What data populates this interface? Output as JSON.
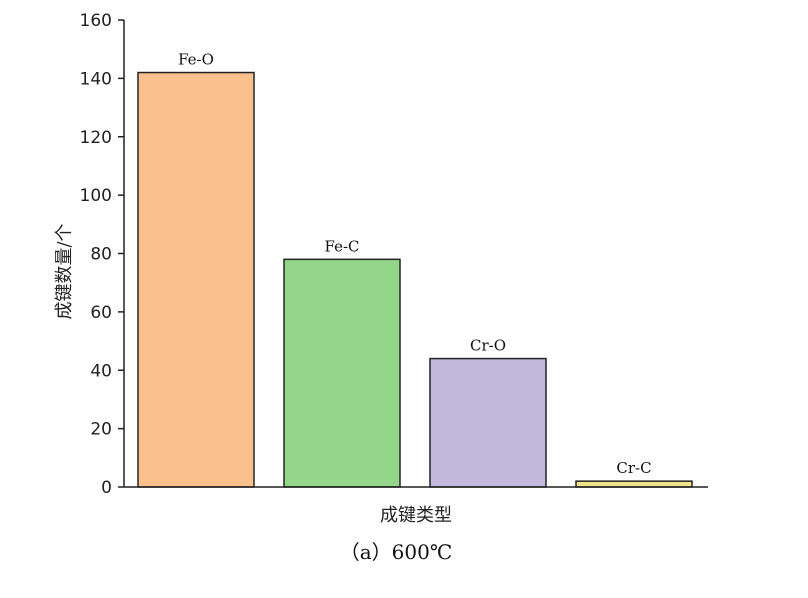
{
  "chart_data": {
    "type": "bar",
    "categories": [
      "Fe-O",
      "Fe-C",
      "Cr-O",
      "Cr-C"
    ],
    "values": [
      142,
      78,
      44,
      2
    ],
    "bar_labels": [
      "Fe-O",
      "Fe-C",
      "Cr-O",
      "Cr-C"
    ],
    "colors": [
      "#fcc08e",
      "#93d68a",
      "#c3b9dc",
      "#f0e68c"
    ],
    "xlabel": "成键类型",
    "ylabel": "成键数量/个",
    "ylim": [
      0,
      160
    ],
    "yticks": [
      0,
      20,
      40,
      60,
      80,
      100,
      120,
      140,
      160
    ],
    "grid": false,
    "caption": "（a）600℃"
  }
}
